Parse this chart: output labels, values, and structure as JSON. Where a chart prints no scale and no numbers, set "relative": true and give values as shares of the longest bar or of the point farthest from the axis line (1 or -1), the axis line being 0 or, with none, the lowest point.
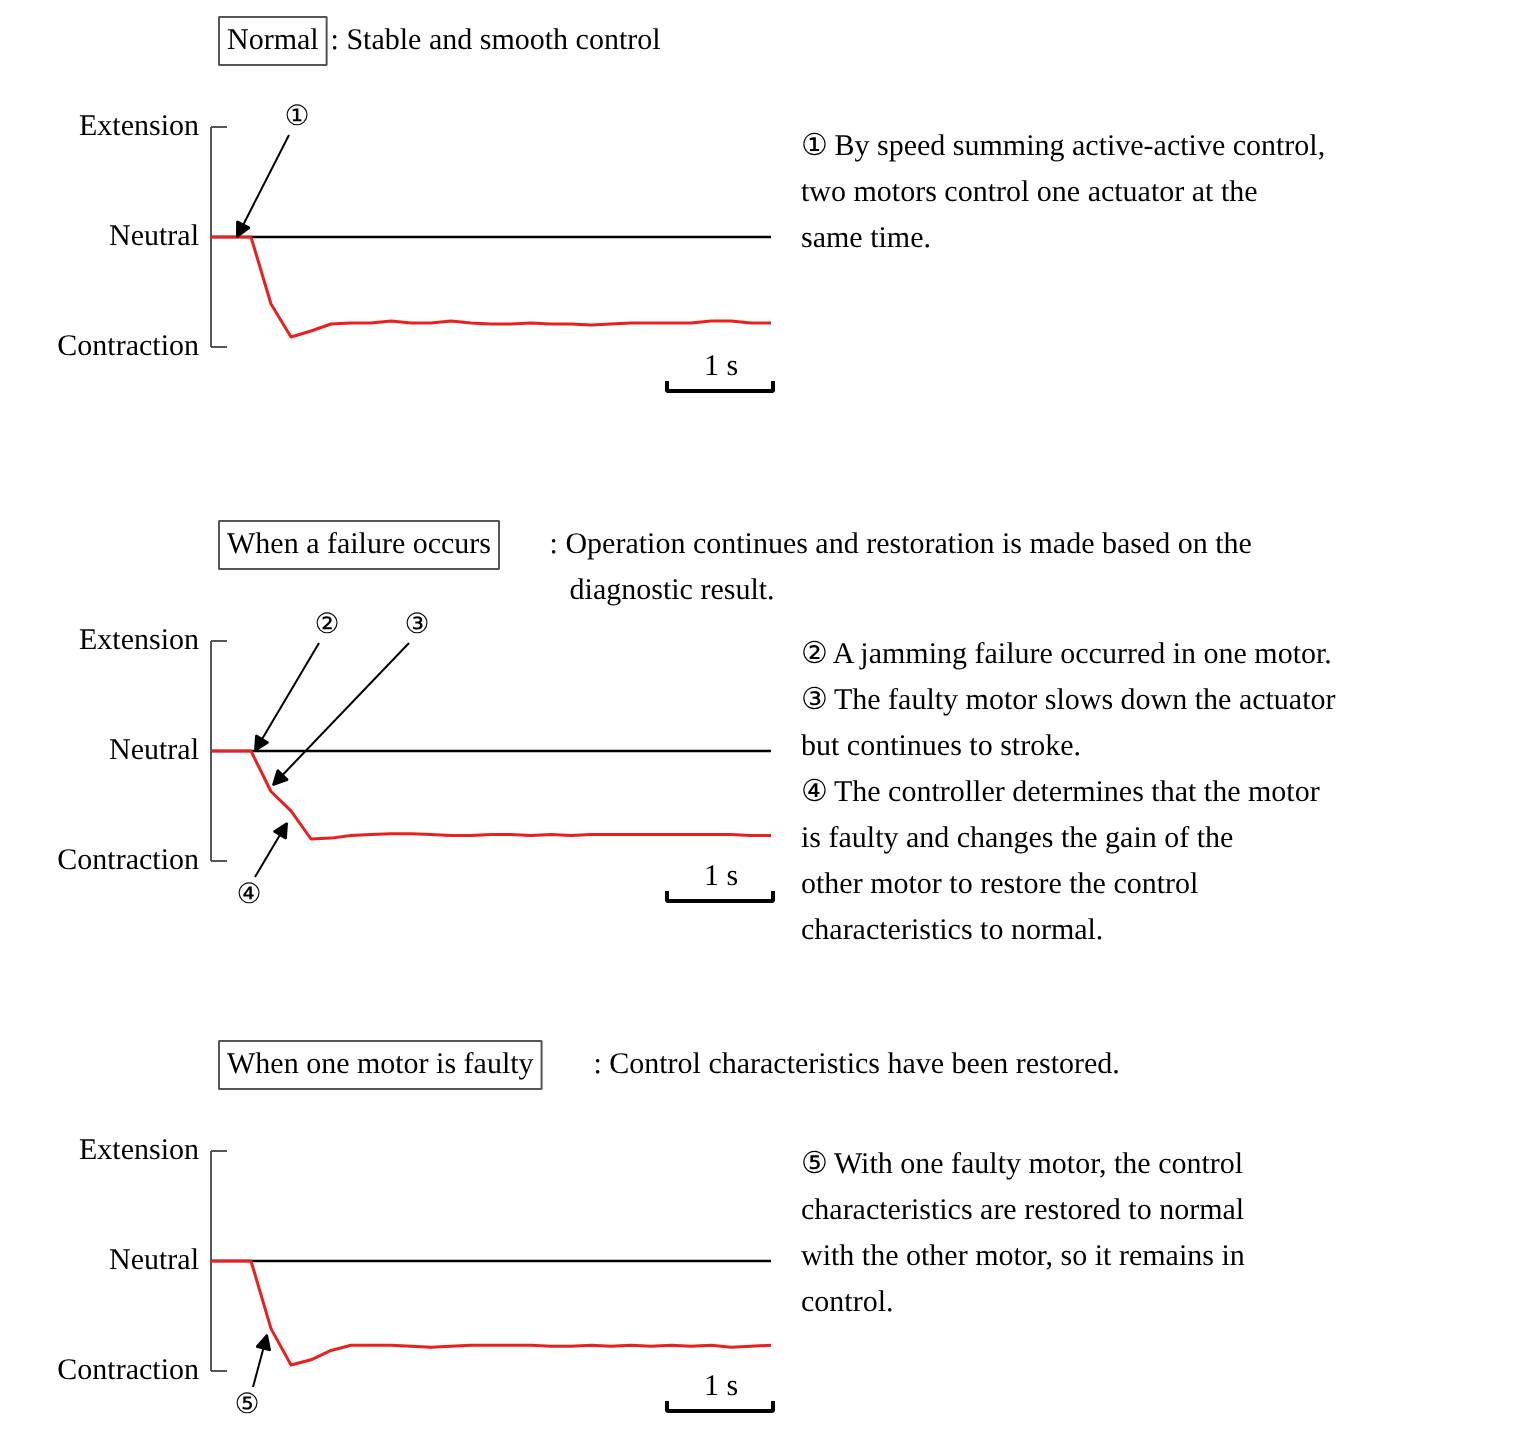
{
  "chart_data": [
    {
      "type": "line",
      "title": "Normal",
      "subtitle": ": Stable and smooth control",
      "relative": true,
      "grid": false,
      "categories": [
        null,
        null,
        null,
        null,
        null,
        null,
        null,
        null,
        null,
        null,
        null,
        null,
        null,
        null,
        null,
        null,
        null,
        null,
        null,
        null,
        null,
        null,
        null,
        null,
        null,
        null,
        null,
        null,
        null
      ],
      "series": [
        {
          "color": "#e8201e",
          "values": [
            0,
            0,
            0,
            -0.67,
            -1,
            -0.94,
            -0.87,
            -0.86,
            -0.86,
            -0.84,
            -0.86,
            -0.86,
            -0.84,
            -0.86,
            -0.87,
            -0.87,
            -0.86,
            -0.87,
            -0.87,
            -0.88,
            -0.87,
            -0.86,
            -0.86,
            -0.86,
            -0.86,
            -0.84,
            -0.84,
            -0.86,
            -0.86
          ]
        }
      ],
      "ref_lines": [
        {
          "axis": "y",
          "value": 0,
          "color": "#000000"
        }
      ],
      "annotations": [
        "Extension",
        "Neutral",
        "Contraction",
        "①",
        "① By speed summing active-active control, two motors control one actuator at the same time.",
        "1 s"
      ]
    },
    {
      "type": "line",
      "title": "When a failure occurs",
      "subtitle": ": Operation continues and restoration is made based on the diagnostic result.",
      "relative": true,
      "grid": false,
      "categories": [
        null,
        null,
        null,
        null,
        null,
        null,
        null,
        null,
        null,
        null,
        null,
        null,
        null,
        null,
        null,
        null,
        null,
        null,
        null,
        null,
        null,
        null,
        null,
        null,
        null,
        null,
        null,
        null,
        null
      ],
      "series": [
        {
          "color": "#e8201e",
          "values": [
            0,
            0,
            0,
            -0.46,
            -0.68,
            -1,
            -0.99,
            -0.96,
            -0.95,
            -0.94,
            -0.94,
            -0.95,
            -0.96,
            -0.96,
            -0.95,
            -0.95,
            -0.96,
            -0.95,
            -0.96,
            -0.95,
            -0.95,
            -0.95,
            -0.95,
            -0.95,
            -0.95,
            -0.95,
            -0.95,
            -0.96,
            -0.96
          ]
        }
      ],
      "ref_lines": [
        {
          "axis": "y",
          "value": 0,
          "color": "#000000"
        }
      ],
      "annotations": [
        "Extension",
        "Neutral",
        "Contraction",
        "②",
        "③",
        "④",
        "② A jamming failure occurred in one motor.",
        "③ The faulty motor slows down the actuator but continues to stroke.",
        "④ The controller determines that the motor is faulty and changes the gain of the other motor to restore the control characteristics to normal.",
        "1 s"
      ]
    },
    {
      "type": "line",
      "title": "When one motor is faulty",
      "subtitle": ": Control characteristics have been restored.",
      "relative": true,
      "grid": false,
      "categories": [
        null,
        null,
        null,
        null,
        null,
        null,
        null,
        null,
        null,
        null,
        null,
        null,
        null,
        null,
        null,
        null,
        null,
        null,
        null,
        null,
        null,
        null,
        null,
        null,
        null,
        null,
        null,
        null,
        null
      ],
      "series": [
        {
          "color": "#e8201e",
          "values": [
            0,
            0,
            0,
            -0.65,
            -1,
            -0.95,
            -0.86,
            -0.81,
            -0.81,
            -0.81,
            -0.82,
            -0.83,
            -0.82,
            -0.81,
            -0.81,
            -0.81,
            -0.81,
            -0.82,
            -0.82,
            -0.81,
            -0.82,
            -0.81,
            -0.82,
            -0.81,
            -0.82,
            -0.81,
            -0.83,
            -0.82,
            -0.81
          ]
        }
      ],
      "ref_lines": [
        {
          "axis": "y",
          "value": 0,
          "color": "#000000"
        }
      ],
      "annotations": [
        "Extension",
        "Neutral",
        "Contraction",
        "⑤",
        "⑤ With one faulty motor, the control characteristics are restored to normal with the other motor, so it remains in control.",
        "1 s"
      ]
    }
  ]
}
